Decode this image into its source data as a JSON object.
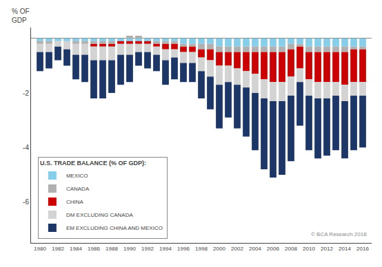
{
  "chart_data": {
    "type": "bar",
    "stacked": true,
    "x": [
      1980,
      1981,
      1982,
      1983,
      1984,
      1985,
      1986,
      1987,
      1988,
      1989,
      1990,
      1991,
      1992,
      1993,
      1994,
      1995,
      1996,
      1997,
      1998,
      1999,
      2000,
      2001,
      2002,
      2003,
      2004,
      2005,
      2006,
      2007,
      2008,
      2009,
      2010,
      2011,
      2012,
      2013,
      2014,
      2015,
      2016
    ],
    "series": [
      {
        "name": "MEXICO",
        "color": "#87CEEB",
        "values": [
          -0.1,
          -0.1,
          -0.1,
          -0.1,
          -0.1,
          -0.1,
          -0.1,
          -0.1,
          -0.1,
          -0.1,
          -0.1,
          -0.1,
          -0.1,
          -0.1,
          -0.1,
          -0.1,
          -0.2,
          -0.2,
          -0.2,
          -0.2,
          -0.3,
          -0.3,
          -0.3,
          -0.3,
          -0.3,
          -0.3,
          -0.3,
          -0.3,
          -0.2,
          -0.2,
          -0.3,
          -0.3,
          -0.3,
          -0.3,
          -0.3,
          -0.3,
          -0.3
        ]
      },
      {
        "name": "CANADA",
        "color": "#B0B0B0",
        "values": [
          -0.1,
          -0.1,
          0.0,
          -0.0,
          -0.1,
          -0.1,
          -0.1,
          -0.1,
          -0.1,
          0.0,
          0.1,
          0.1,
          -0.0,
          -0.1,
          -0.1,
          -0.1,
          -0.1,
          -0.1,
          -0.2,
          -0.2,
          -0.2,
          -0.2,
          -0.2,
          -0.2,
          -0.2,
          -0.2,
          -0.2,
          -0.2,
          -0.2,
          -0.1,
          -0.2,
          -0.2,
          -0.2,
          -0.2,
          -0.2,
          -0.1,
          -0.1
        ]
      },
      {
        "name": "CHINA",
        "color": "#CC0000",
        "values": [
          0.0,
          0.0,
          0.0,
          -0.0,
          -0.0,
          -0.0,
          -0.1,
          -0.1,
          -0.1,
          -0.1,
          -0.1,
          -0.1,
          -0.1,
          -0.1,
          -0.2,
          -0.2,
          -0.2,
          -0.2,
          -0.3,
          -0.4,
          -0.5,
          -0.5,
          -0.6,
          -0.7,
          -0.8,
          -1.0,
          -1.1,
          -1.1,
          -1.0,
          -0.8,
          -1.0,
          -1.1,
          -1.1,
          -1.1,
          -1.2,
          -1.2,
          -1.2
        ]
      },
      {
        "name": "DM EXCLUDING CANADA",
        "color": "#D3D3D3",
        "values": [
          -0.3,
          -0.3,
          -0.2,
          -0.3,
          -0.4,
          -0.4,
          -0.5,
          -0.5,
          -0.5,
          -0.4,
          -0.4,
          -0.3,
          -0.3,
          -0.3,
          -0.4,
          -0.3,
          -0.4,
          -0.4,
          -0.5,
          -0.6,
          -0.7,
          -0.6,
          -0.6,
          -0.6,
          -0.7,
          -0.7,
          -0.7,
          -0.7,
          -0.7,
          -0.5,
          -0.6,
          -0.6,
          -0.6,
          -0.5,
          -0.6,
          -0.5,
          -0.5
        ]
      },
      {
        "name": "EM EXCLUDING CHINA AND MEXICO",
        "color": "#1C3668",
        "values": [
          -0.7,
          -0.6,
          -0.5,
          -0.6,
          -0.9,
          -1.0,
          -1.4,
          -1.4,
          -1.2,
          -1.1,
          -1.0,
          -0.5,
          -0.6,
          -0.6,
          -0.9,
          -0.8,
          -0.7,
          -0.7,
          -1.0,
          -1.2,
          -1.6,
          -1.3,
          -1.6,
          -1.8,
          -2.1,
          -2.6,
          -2.8,
          -2.7,
          -2.4,
          -1.6,
          -2.0,
          -2.2,
          -2.1,
          -2.0,
          -2.1,
          -2.0,
          -1.9
        ]
      }
    ],
    "legend_title": "U.S. TRADE BALANCE (% OF GDP):",
    "legend": "lower left",
    "ylabel": "% OF\nGDP",
    "xlim": [
      1979,
      2017
    ],
    "xticks": [
      1980,
      1982,
      1984,
      1986,
      1988,
      1990,
      1992,
      1994,
      1996,
      1998,
      2000,
      2002,
      2004,
      2006,
      2008,
      2010,
      2012,
      2014,
      2016
    ],
    "ylim": [
      -7.5,
      0.4
    ],
    "yticks": [
      -2,
      -4,
      -6
    ],
    "grid": false,
    "annotations": [
      "© BCA Research 2018"
    ]
  }
}
